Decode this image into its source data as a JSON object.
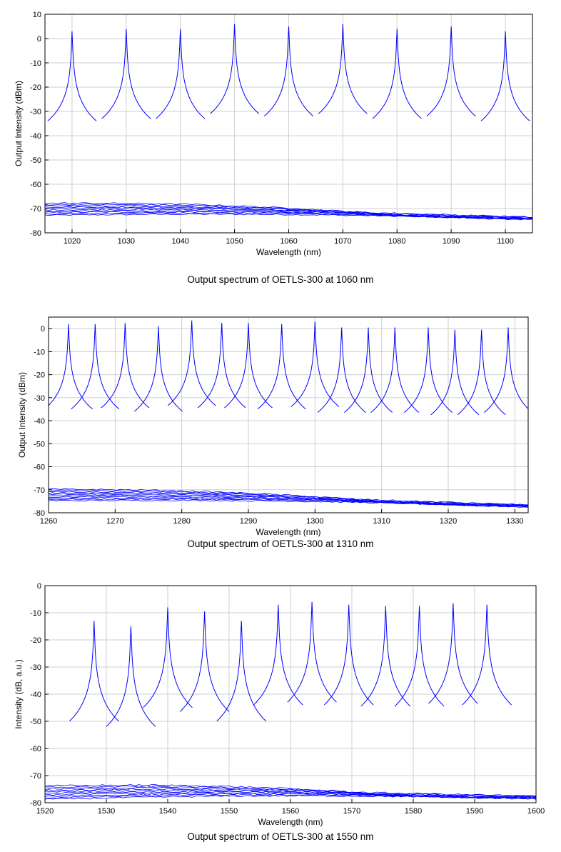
{
  "chart_data": [
    {
      "type": "line",
      "title": "",
      "caption": "Output spectrum of OETLS-300 at 1060 nm",
      "xlabel": "Wavelength (nm)",
      "ylabel": "Output Intensity (dBm)",
      "xlim": [
        1015,
        1105
      ],
      "ylim": [
        -80,
        10
      ],
      "xticks": [
        1020,
        1030,
        1040,
        1050,
        1060,
        1070,
        1080,
        1090,
        1100
      ],
      "yticks": [
        10,
        0,
        -10,
        -20,
        -30,
        -40,
        -50,
        -60,
        -70,
        -80
      ],
      "grid": true,
      "color": "#0000ff",
      "series": [
        {
          "peak_x": 1020,
          "peak_y": 3
        },
        {
          "peak_x": 1030,
          "peak_y": 4
        },
        {
          "peak_x": 1040,
          "peak_y": 4
        },
        {
          "peak_x": 1050,
          "peak_y": 6
        },
        {
          "peak_x": 1060,
          "peak_y": 5
        },
        {
          "peak_x": 1070,
          "peak_y": 6
        },
        {
          "peak_x": 1080,
          "peak_y": 4
        },
        {
          "peak_x": 1090,
          "peak_y": 5
        },
        {
          "peak_x": 1100,
          "peak_y": 3
        }
      ],
      "floor_start": -70,
      "floor_end": -74
    },
    {
      "type": "line",
      "title": "",
      "caption": "Output spectrum of OETLS-300 at 1310 nm",
      "xlabel": "Wavelength (nm)",
      "ylabel": "Output Intensity (dBm)",
      "xlim": [
        1260,
        1332
      ],
      "ylim": [
        -80,
        5
      ],
      "xticks": [
        1260,
        1270,
        1280,
        1290,
        1300,
        1310,
        1320,
        1330
      ],
      "yticks": [
        0,
        -10,
        -20,
        -30,
        -40,
        -50,
        -60,
        -70,
        -80
      ],
      "grid": true,
      "color": "#0000ff",
      "series": [
        {
          "peak_x": 1263,
          "peak_y": 2
        },
        {
          "peak_x": 1267,
          "peak_y": 2
        },
        {
          "peak_x": 1271.5,
          "peak_y": 2.5
        },
        {
          "peak_x": 1276.5,
          "peak_y": 1
        },
        {
          "peak_x": 1281.5,
          "peak_y": 3.5
        },
        {
          "peak_x": 1286,
          "peak_y": 2.5
        },
        {
          "peak_x": 1290,
          "peak_y": 2.5
        },
        {
          "peak_x": 1295,
          "peak_y": 2
        },
        {
          "peak_x": 1300,
          "peak_y": 3
        },
        {
          "peak_x": 1304,
          "peak_y": 0.5
        },
        {
          "peak_x": 1308,
          "peak_y": 0.5
        },
        {
          "peak_x": 1312,
          "peak_y": 0.5
        },
        {
          "peak_x": 1317,
          "peak_y": 0.5
        },
        {
          "peak_x": 1321,
          "peak_y": -0.5
        },
        {
          "peak_x": 1325,
          "peak_y": -0.5
        },
        {
          "peak_x": 1329,
          "peak_y": 0.5
        }
      ],
      "floor_start": -72,
      "floor_end": -77
    },
    {
      "type": "line",
      "title": "",
      "caption": "Output spectrum of OETLS-300 at 1550 nm",
      "xlabel": "Wavelength (nm)",
      "ylabel": "Intensity (dB, a.u.)",
      "xlim": [
        1520,
        1600
      ],
      "ylim": [
        -80,
        0
      ],
      "xticks": [
        1520,
        1530,
        1540,
        1550,
        1560,
        1570,
        1580,
        1590,
        1600
      ],
      "yticks": [
        0,
        -10,
        -20,
        -30,
        -40,
        -50,
        -60,
        -70,
        -80
      ],
      "grid": true,
      "color": "#0000ff",
      "series": [
        {
          "peak_x": 1528,
          "peak_y": -13
        },
        {
          "peak_x": 1534,
          "peak_y": -15
        },
        {
          "peak_x": 1540,
          "peak_y": -8
        },
        {
          "peak_x": 1546,
          "peak_y": -9.5
        },
        {
          "peak_x": 1552,
          "peak_y": -13
        },
        {
          "peak_x": 1558,
          "peak_y": -7
        },
        {
          "peak_x": 1563.5,
          "peak_y": -6
        },
        {
          "peak_x": 1569.5,
          "peak_y": -7
        },
        {
          "peak_x": 1575.5,
          "peak_y": -7.5
        },
        {
          "peak_x": 1581,
          "peak_y": -7.5
        },
        {
          "peak_x": 1586.5,
          "peak_y": -6.5
        },
        {
          "peak_x": 1592,
          "peak_y": -7
        }
      ],
      "floor_start": -76,
      "floor_end": -78
    }
  ]
}
